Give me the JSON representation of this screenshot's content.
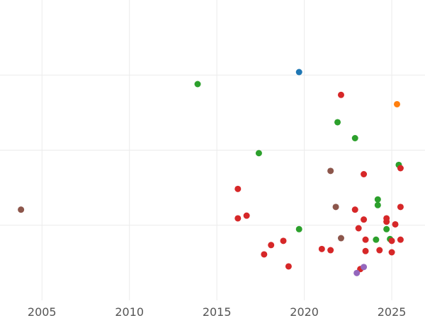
{
  "chart_data": {
    "type": "scatter",
    "title": "",
    "xlabel": "",
    "ylabel": "",
    "xlim": [
      2002.6,
      2026.9
    ],
    "ylim": [
      0,
      1
    ],
    "x_ticks": [
      {
        "value": 2005,
        "label": "2005"
      },
      {
        "value": 2010,
        "label": "2010"
      },
      {
        "value": 2015,
        "label": "2015"
      },
      {
        "value": 2020,
        "label": "2020"
      },
      {
        "value": 2025,
        "label": "2025"
      }
    ],
    "y_grid": [
      0.25,
      0.5,
      0.75
    ],
    "grid": true,
    "legend": "none",
    "series": [
      {
        "color": "#1f77b4",
        "points": [
          {
            "x": 2019.7,
            "y": 0.76
          }
        ]
      },
      {
        "color": "#ff7f0e",
        "points": [
          {
            "x": 2025.3,
            "y": 0.653
          }
        ]
      },
      {
        "color": "#2ca02c",
        "points": [
          {
            "x": 2013.9,
            "y": 0.72
          },
          {
            "x": 2017.4,
            "y": 0.49
          },
          {
            "x": 2019.7,
            "y": 0.237
          },
          {
            "x": 2021.9,
            "y": 0.593
          },
          {
            "x": 2022.9,
            "y": 0.54
          },
          {
            "x": 2024.1,
            "y": 0.202
          },
          {
            "x": 2024.2,
            "y": 0.336
          },
          {
            "x": 2024.2,
            "y": 0.317
          },
          {
            "x": 2024.7,
            "y": 0.237
          },
          {
            "x": 2024.9,
            "y": 0.204
          },
          {
            "x": 2025.4,
            "y": 0.451
          }
        ]
      },
      {
        "color": "#d62728",
        "points": [
          {
            "x": 2016.2,
            "y": 0.371
          },
          {
            "x": 2016.2,
            "y": 0.273
          },
          {
            "x": 2016.7,
            "y": 0.282
          },
          {
            "x": 2017.7,
            "y": 0.153
          },
          {
            "x": 2018.1,
            "y": 0.184
          },
          {
            "x": 2018.8,
            "y": 0.198
          },
          {
            "x": 2019.1,
            "y": 0.113
          },
          {
            "x": 2021.0,
            "y": 0.171
          },
          {
            "x": 2021.5,
            "y": 0.167
          },
          {
            "x": 2022.1,
            "y": 0.684
          },
          {
            "x": 2022.9,
            "y": 0.302
          },
          {
            "x": 2023.1,
            "y": 0.24
          },
          {
            "x": 2023.2,
            "y": 0.104
          },
          {
            "x": 2023.4,
            "y": 0.42
          },
          {
            "x": 2023.4,
            "y": 0.269
          },
          {
            "x": 2023.5,
            "y": 0.202
          },
          {
            "x": 2023.5,
            "y": 0.164
          },
          {
            "x": 2024.3,
            "y": 0.167
          },
          {
            "x": 2024.7,
            "y": 0.273
          },
          {
            "x": 2024.7,
            "y": 0.262
          },
          {
            "x": 2025.0,
            "y": 0.198
          },
          {
            "x": 2025.0,
            "y": 0.16
          },
          {
            "x": 2025.2,
            "y": 0.253
          },
          {
            "x": 2025.5,
            "y": 0.311
          },
          {
            "x": 2025.5,
            "y": 0.202
          },
          {
            "x": 2025.5,
            "y": 0.44
          }
        ]
      },
      {
        "color": "#9467bd",
        "points": [
          {
            "x": 2023.0,
            "y": 0.091
          },
          {
            "x": 2023.4,
            "y": 0.111
          }
        ]
      },
      {
        "color": "#8c564b",
        "points": [
          {
            "x": 2003.8,
            "y": 0.302
          },
          {
            "x": 2021.5,
            "y": 0.431
          },
          {
            "x": 2021.8,
            "y": 0.311
          },
          {
            "x": 2022.1,
            "y": 0.207
          }
        ]
      }
    ]
  }
}
